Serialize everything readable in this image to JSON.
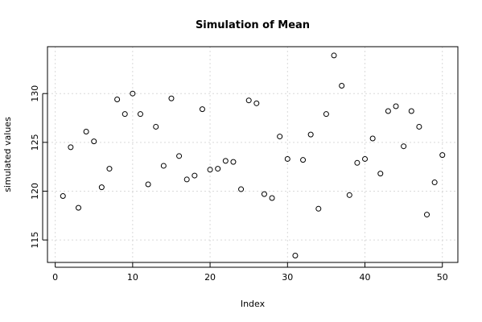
{
  "chart_data": {
    "type": "scatter",
    "title": "Simulation of Mean",
    "xlabel": "Index",
    "ylabel": "simulated values",
    "xlim": [
      -1,
      52
    ],
    "ylim": [
      112.7,
      134.8
    ],
    "x_ticks": [
      0,
      10,
      20,
      30,
      40,
      50
    ],
    "y_ticks": [
      115,
      120,
      125,
      130
    ],
    "grid": true,
    "series": [
      {
        "x": [
          1,
          2,
          3,
          4,
          5,
          6,
          7,
          8,
          9,
          10,
          11,
          12,
          13,
          14,
          15,
          16,
          17,
          18,
          19,
          20,
          21,
          22,
          23,
          24,
          25,
          26,
          27,
          28,
          29,
          30,
          31,
          32,
          33,
          34,
          35,
          36,
          37,
          38,
          39,
          40,
          41,
          42,
          43,
          44,
          45,
          46,
          47,
          48,
          49,
          50
        ],
        "values": [
          119.5,
          124.5,
          118.3,
          126.1,
          125.1,
          120.4,
          122.3,
          129.4,
          127.9,
          130.0,
          127.9,
          120.7,
          126.6,
          122.6,
          129.5,
          123.6,
          121.2,
          121.6,
          128.4,
          122.2,
          122.3,
          123.1,
          123.0,
          120.2,
          129.3,
          129.0,
          119.7,
          119.3,
          125.6,
          123.3,
          113.4,
          123.2,
          125.8,
          118.2,
          127.9,
          133.9,
          130.8,
          119.6,
          122.9,
          123.3,
          125.4,
          121.8,
          128.2,
          128.7,
          124.6,
          128.2,
          126.6,
          117.6,
          120.9,
          123.7
        ]
      }
    ]
  }
}
